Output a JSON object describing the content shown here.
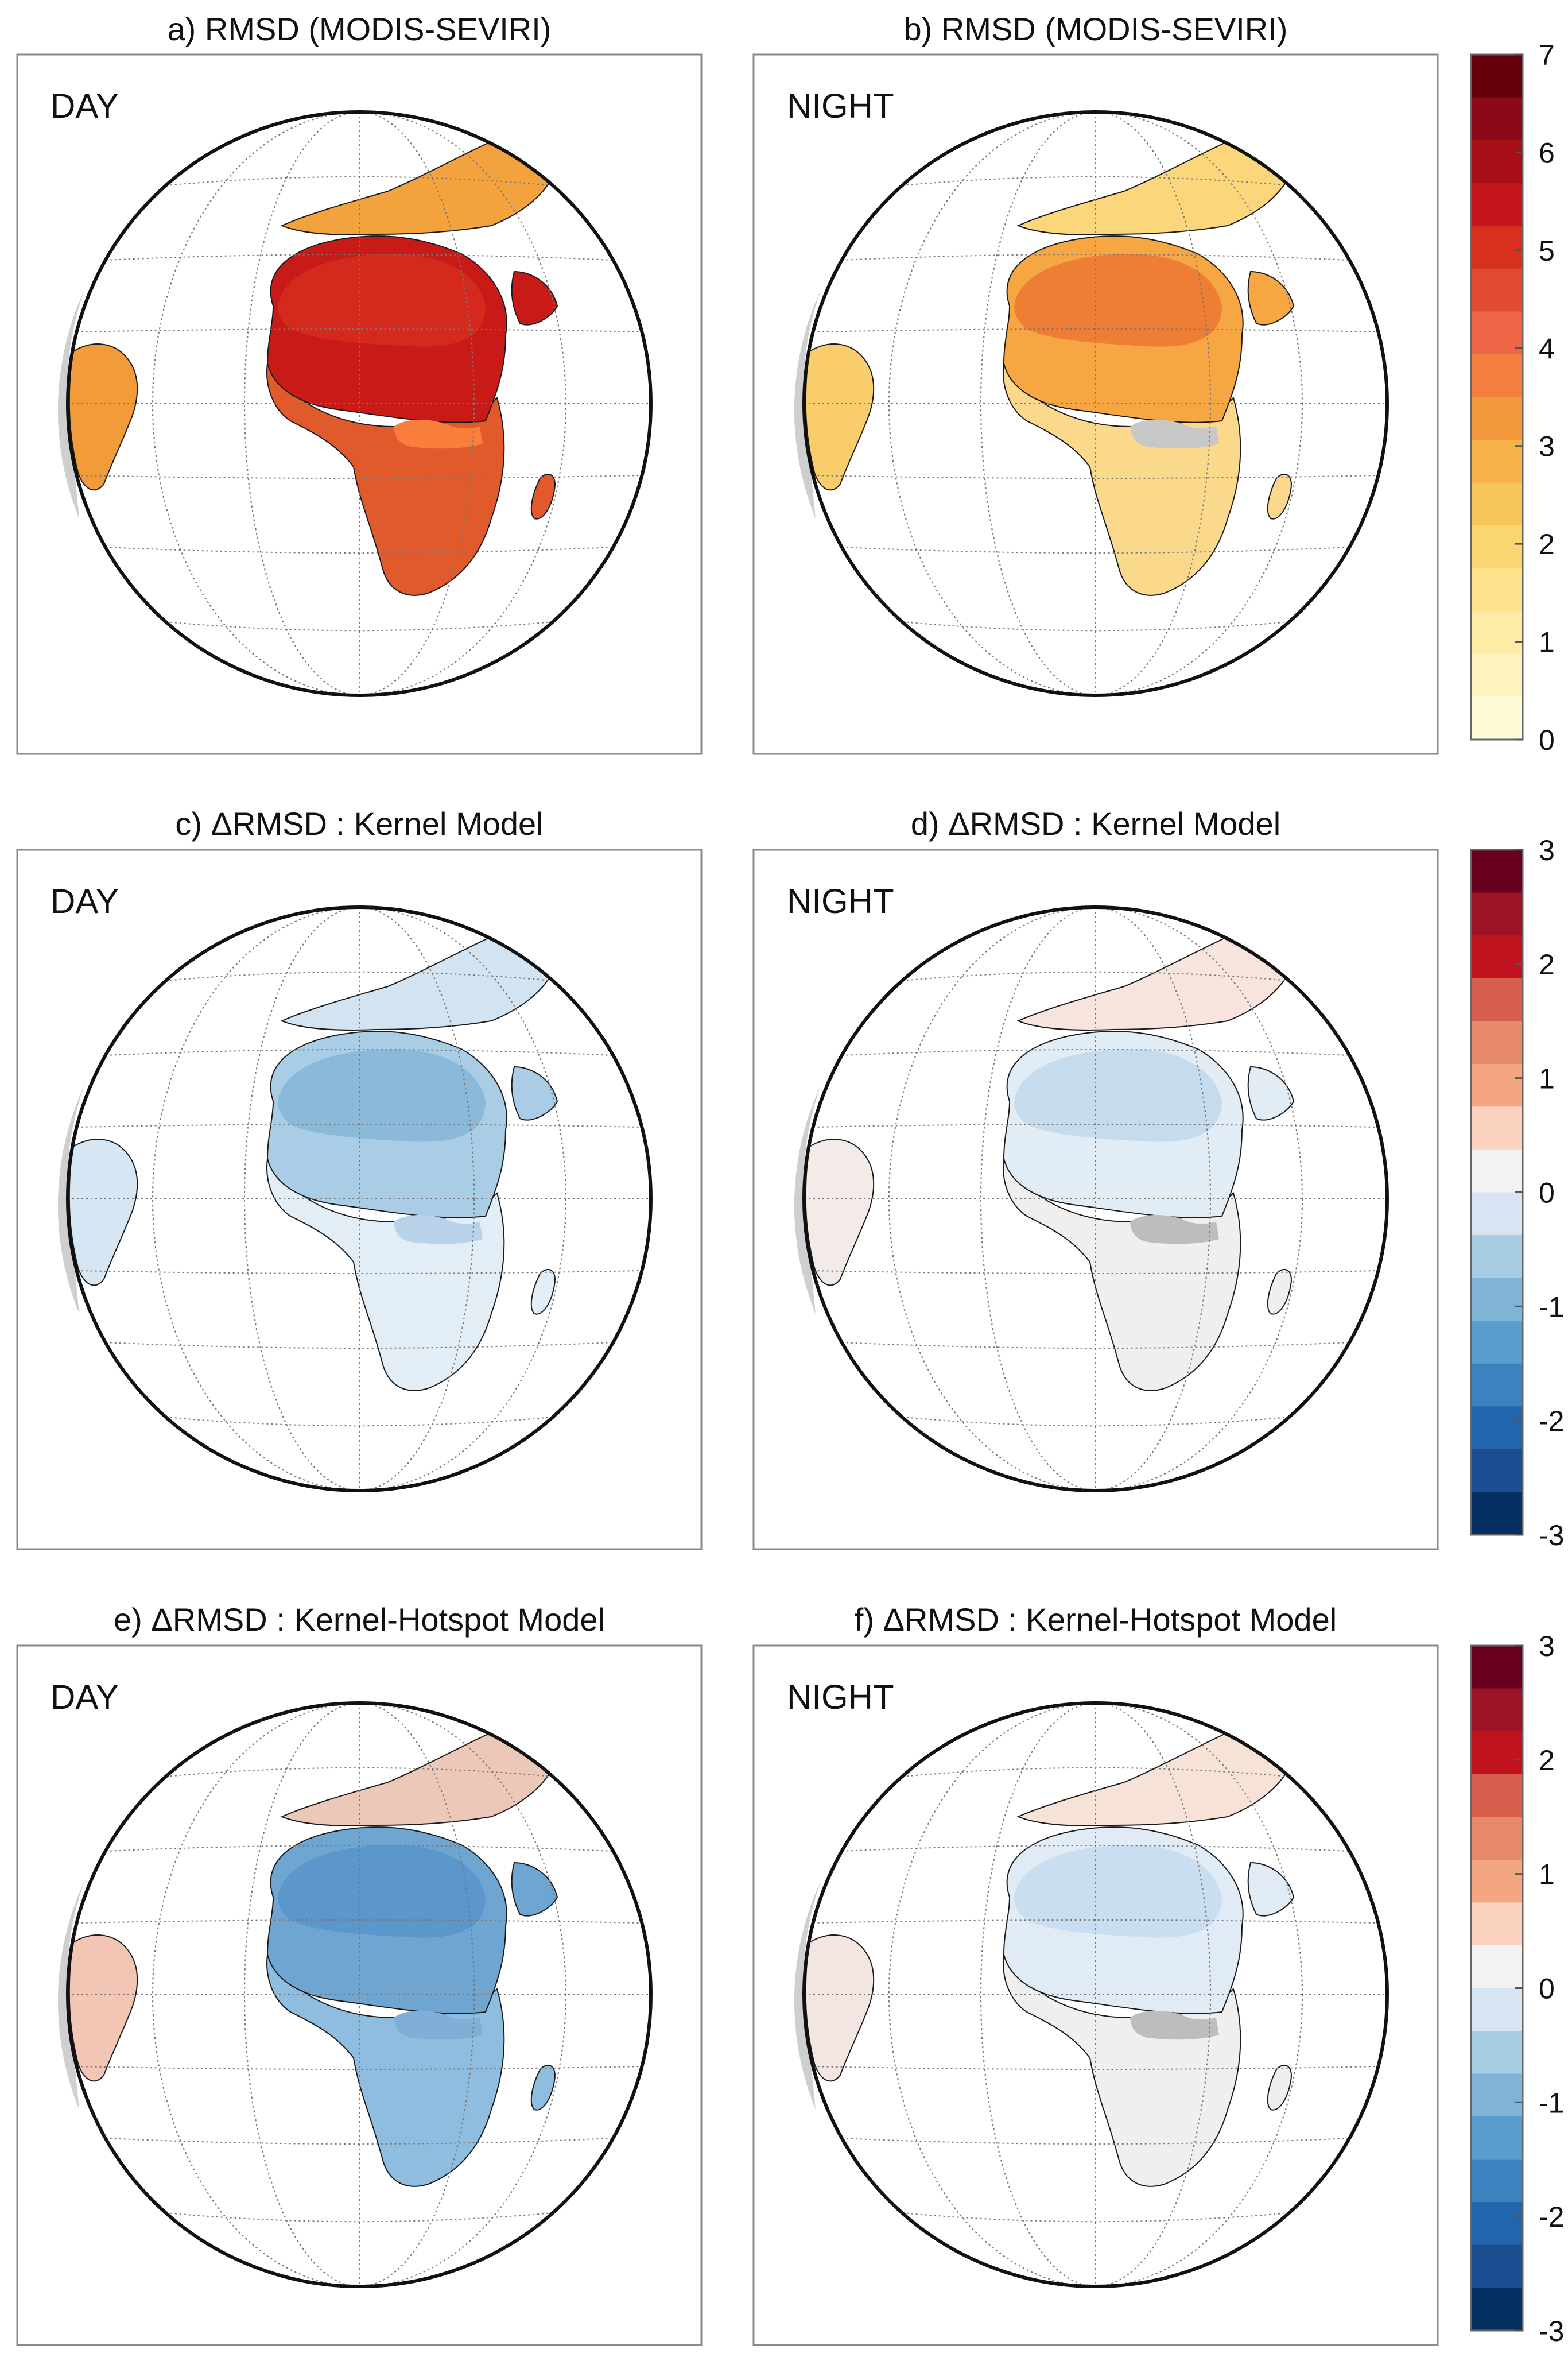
{
  "panels": [
    {
      "id": "a",
      "title": "a) RMSD (MODIS-SEVIRI)",
      "label": "DAY",
      "scale": "rmsd",
      "style": "rmsd_day"
    },
    {
      "id": "b",
      "title": "b) RMSD (MODIS-SEVIRI)",
      "label": "NIGHT",
      "scale": "rmsd",
      "style": "rmsd_night"
    },
    {
      "id": "c",
      "title": "c) ΔRMSD : Kernel Model",
      "label": "DAY",
      "scale": "delta",
      "style": "kernel_day"
    },
    {
      "id": "d",
      "title": "d) ΔRMSD : Kernel Model",
      "label": "NIGHT",
      "scale": "delta",
      "style": "kernel_night"
    },
    {
      "id": "e",
      "title": "e) ΔRMSD : Kernel-Hotspot Model",
      "label": "DAY",
      "scale": "delta",
      "style": "hotspot_day"
    },
    {
      "id": "f",
      "title": "f) ΔRMSD : Kernel-Hotspot Model",
      "label": "NIGHT",
      "scale": "delta",
      "style": "hotspot_night"
    }
  ],
  "colorbars": [
    {
      "id": "rmsd",
      "ticks": [
        "7",
        "6",
        "5",
        "4",
        "3",
        "2",
        "1",
        "0"
      ],
      "colors": [
        "#67000d",
        "#8b0a1a",
        "#a50f15",
        "#c4161c",
        "#d7301f",
        "#e34a33",
        "#ef6548",
        "#f47e3f",
        "#f4983d",
        "#f7b34a",
        "#f8c55b",
        "#fbd572",
        "#fde28b",
        "#feeba5",
        "#fff3bf",
        "#fffad8"
      ]
    },
    {
      "id": "delta",
      "ticks": [
        "3",
        "2",
        "1",
        "0",
        "-1",
        "-2",
        "-3"
      ],
      "colors": [
        "#67001f",
        "#9e1427",
        "#c1121f",
        "#d6604d",
        "#e7896b",
        "#f4a582",
        "#fbd3c0",
        "#f2f2f2",
        "#d6e5f1",
        "#a7cde3",
        "#7fb4d6",
        "#5a9ccb",
        "#3b82bf",
        "#2166ac",
        "#1b4e91",
        "#053061"
      ]
    }
  ],
  "map_colors": {
    "rmsd_day": {
      "north": "#c81b17",
      "sahara": "#d32a1d",
      "south": "#e05a2c",
      "europe": "#f2a33e",
      "america": "#f19b3b",
      "gap": "#fb7f3c"
    },
    "rmsd_night": {
      "north": "#f6a743",
      "sahara": "#ee7e36",
      "south": "#fbd98c",
      "europe": "#fbd67b",
      "america": "#f9cc6c",
      "gap": "#c8c8c8"
    },
    "kernel_day": {
      "north": "#a9cde4",
      "sahara": "#8ab9da",
      "south": "#e3edf6",
      "europe": "#d2e4f1",
      "america": "#d7e6f3",
      "gap": "#b8d3e9"
    },
    "kernel_night": {
      "north": "#e2ecf5",
      "sahara": "#c5dcee",
      "south": "#efefef",
      "europe": "#f7e4dc",
      "america": "#f3ebe7",
      "gap": "#bdbdbd"
    },
    "hotspot_day": {
      "north": "#6fa5d1",
      "sahara": "#5b97ca",
      "south": "#8fbddf",
      "europe": "#ecc8b8",
      "america": "#f3c5b4",
      "gap": "#7faed7"
    },
    "hotspot_night": {
      "north": "#e0ebf5",
      "sahara": "#c9def0",
      "south": "#efefef",
      "europe": "#f7e2d8",
      "america": "#f3e6e2",
      "gap": "#bdbdbd"
    }
  }
}
